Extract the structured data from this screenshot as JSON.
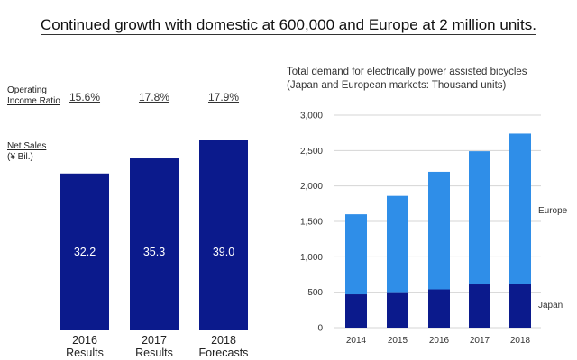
{
  "title": "Continued growth with domestic at 600,000 and Europe at 2 million units.",
  "left_panel": {
    "operating_label_1": "Operating",
    "operating_label_2": "Income Ratio",
    "net_sales_label_1": "Net Sales",
    "net_sales_label_2": "(¥ Bil.)",
    "ratios": [
      "15.6%",
      "17.8%",
      "17.9%"
    ]
  },
  "right_panel": {
    "title_line1": "Total demand for electrically power assisted bicycles",
    "title_line2": "(Japan and European markets: Thousand units)"
  },
  "colors": {
    "dark_blue": "#0b1a8c",
    "light_blue": "#2f8ee8"
  },
  "chart_data": [
    {
      "type": "bar",
      "categories": [
        [
          "2016",
          "Results"
        ],
        [
          "2017",
          "Results"
        ],
        [
          "2018",
          "Forecasts"
        ]
      ],
      "values": [
        32.2,
        35.3,
        39.0
      ],
      "value_labels": [
        "32.2",
        "35.3",
        "39.0"
      ],
      "ylabel": "Net Sales (¥ Bil.)"
    },
    {
      "type": "bar",
      "stacked": true,
      "categories": [
        "2014",
        "2015",
        "2016",
        "2017",
        "2018"
      ],
      "series": [
        {
          "name": "Japan",
          "values": [
            470,
            500,
            540,
            610,
            620
          ]
        },
        {
          "name": "Europe",
          "values": [
            1130,
            1360,
            1660,
            1880,
            2120
          ]
        }
      ],
      "ylim": [
        0,
        3000
      ],
      "yticks": [
        "0",
        "500",
        "1,000",
        "1,500",
        "2,000",
        "2,500",
        "3,000"
      ],
      "legend_placement": "right"
    }
  ]
}
